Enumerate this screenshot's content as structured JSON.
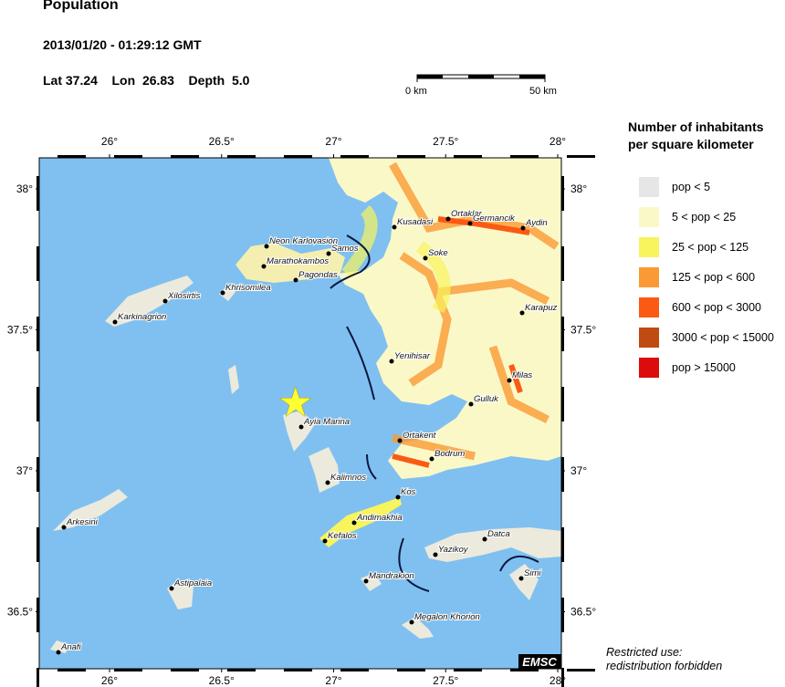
{
  "header": {
    "title": "Population",
    "datetime": "2013/01/20 - 01:29:12 GMT",
    "lat_label": "Lat",
    "lat": "37.24",
    "lon_label": "Lon",
    "lon": "26.83",
    "depth_label": "Depth",
    "depth": "5.0"
  },
  "scale_bar": {
    "start": "0 km",
    "end": "50 km"
  },
  "map": {
    "lon_ticks": [
      "26°",
      "26.5°",
      "27°",
      "27.5°",
      "28°"
    ],
    "lat_ticks": [
      "38°",
      "37.5°",
      "37°",
      "36.5°"
    ],
    "epicenter": {
      "lat": 37.24,
      "lon": 26.83,
      "marker": "star",
      "color": "#ffff33"
    },
    "sea_color": "#80c0f0",
    "towns": [
      "Kusadasi",
      "Ortaklar",
      "Germancik",
      "Aydin",
      "Soke",
      "Neon Karlovasion",
      "Samos",
      "Marathokambos",
      "Pagondas",
      "Khrisomilea",
      "Xilosirtis",
      "Karkinagrion",
      "Karapuz",
      "Yenihisar",
      "Milas",
      "Gulluk",
      "Ayia Marina",
      "Ortakent",
      "Bodrum",
      "Kalimnos",
      "Kos",
      "Andimakhia",
      "Kefalos",
      "Arkesini",
      "Datca",
      "Yazikoy",
      "Mandrakion",
      "Simi",
      "Astipalaia",
      "Megalon Khorion",
      "Anafi"
    ],
    "logo": "EMSC"
  },
  "legend": {
    "title_line1": "Number of inhabitants",
    "title_line2": "per square kilometer",
    "items": [
      {
        "label": "pop < 5",
        "color": "#e6e6e6"
      },
      {
        "label": "5 < pop < 25",
        "color": "#fbf8c8"
      },
      {
        "label": "25 < pop < 125",
        "color": "#f8f45c"
      },
      {
        "label": "125 < pop < 600",
        "color": "#fb9a34"
      },
      {
        "label": "600 < pop < 3000",
        "color": "#fb5a14"
      },
      {
        "label": "3000 < pop < 15000",
        "color": "#bf4a12"
      },
      {
        "label": "pop > 15000",
        "color": "#dc0c0c"
      }
    ]
  },
  "footer": {
    "note_line1": "Restricted use:",
    "note_line2": "redistribution forbidden"
  }
}
